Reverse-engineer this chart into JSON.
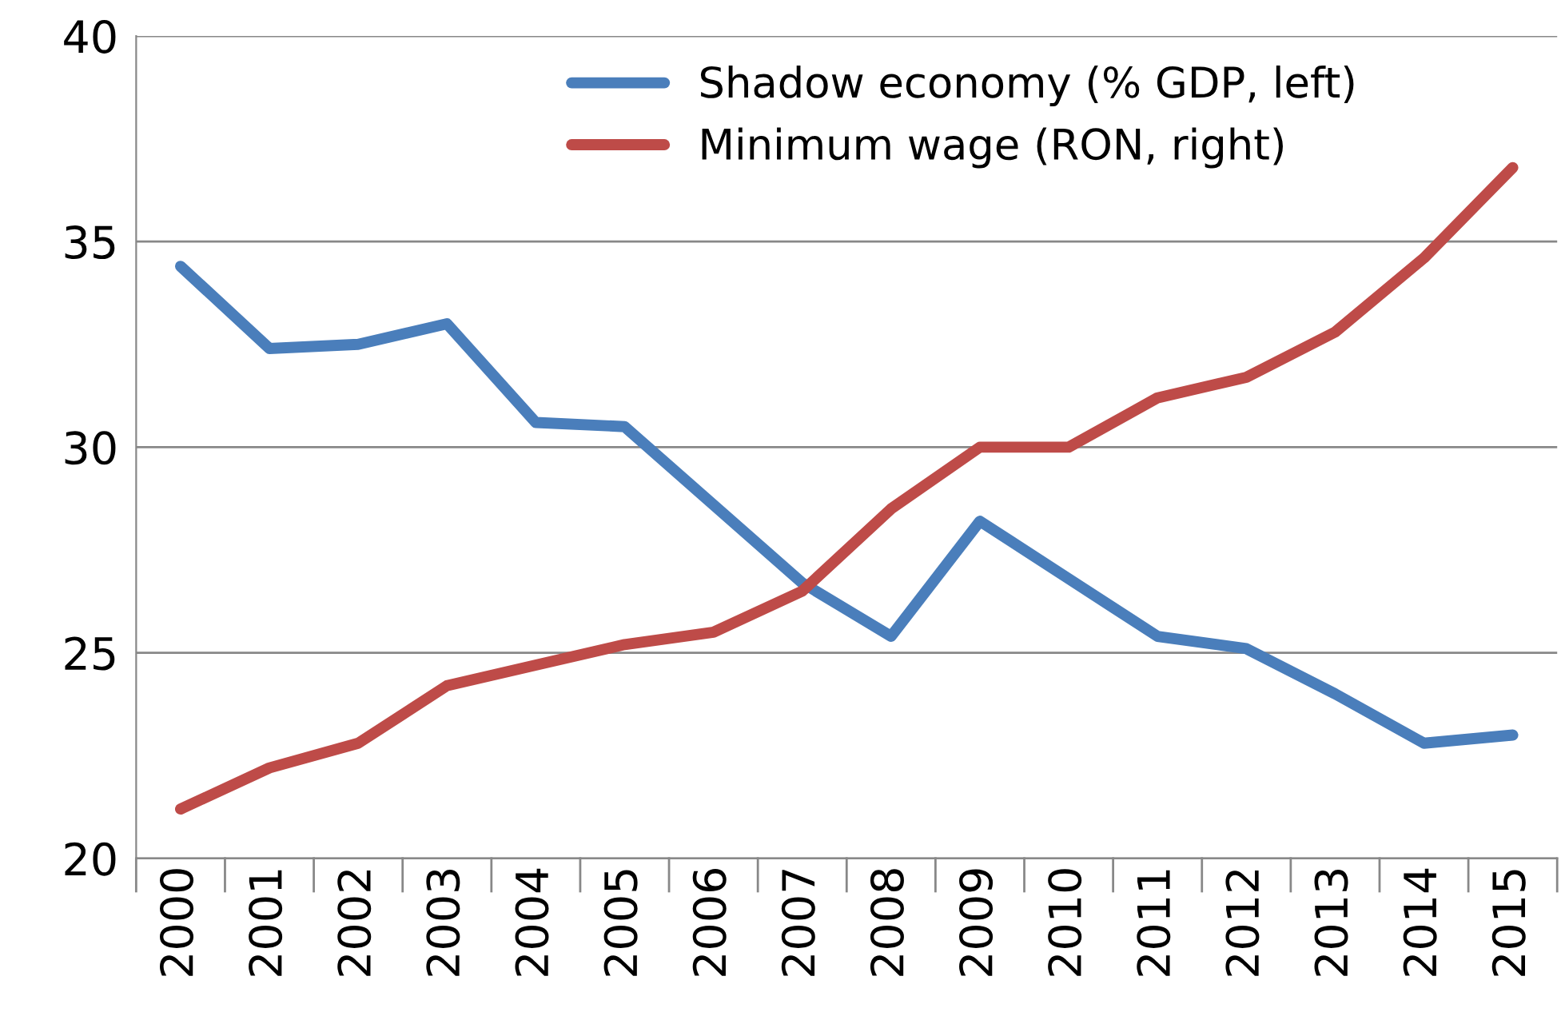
{
  "chart_data": {
    "type": "line",
    "categories": [
      "2000",
      "2001",
      "2002",
      "2003",
      "2004",
      "2005",
      "2006",
      "2007",
      "2008",
      "2009",
      "2010",
      "2011",
      "2012",
      "2013",
      "2014",
      "2015"
    ],
    "series": [
      {
        "name": "Shadow economy (% GDP, left)",
        "color": "#4a7ebb",
        "values": [
          34.4,
          32.4,
          32.5,
          33.0,
          30.6,
          30.5,
          28.6,
          26.7,
          25.4,
          28.2,
          26.8,
          25.4,
          25.1,
          24.0,
          22.8,
          23.0
        ]
      },
      {
        "name": "Minimum wage (RON, right)",
        "color": "#be4b48",
        "values": [
          21.2,
          22.2,
          22.8,
          24.2,
          24.7,
          25.2,
          25.5,
          26.5,
          28.5,
          30.0,
          30.0,
          31.2,
          31.7,
          32.8,
          34.6,
          36.8
        ]
      }
    ],
    "ylim": [
      20,
      40
    ],
    "yticks": [
      20,
      25,
      30,
      35,
      40
    ],
    "grid": "y",
    "legend": "top right"
  }
}
